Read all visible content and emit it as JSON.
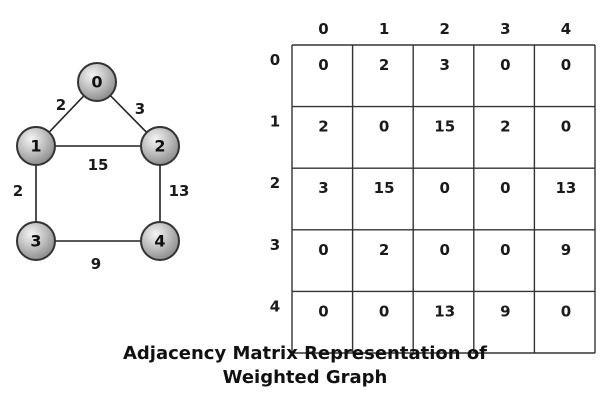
{
  "graph": {
    "nodes": [
      "0",
      "1",
      "2",
      "3",
      "4"
    ],
    "edges": [
      {
        "from": "0",
        "to": "1",
        "weight": "2"
      },
      {
        "from": "0",
        "to": "2",
        "weight": "3"
      },
      {
        "from": "1",
        "to": "2",
        "weight": "15"
      },
      {
        "from": "1",
        "to": "3",
        "weight": "2"
      },
      {
        "from": "2",
        "to": "4",
        "weight": "13"
      },
      {
        "from": "3",
        "to": "4",
        "weight": "9"
      }
    ]
  },
  "matrix": {
    "column_headers": [
      "0",
      "1",
      "2",
      "3",
      "4"
    ],
    "row_headers": [
      "0",
      "1",
      "2",
      "3",
      "4"
    ],
    "rows": [
      [
        "0",
        "2",
        "3",
        "0",
        "0"
      ],
      [
        "2",
        "0",
        "15",
        "2",
        "0"
      ],
      [
        "3",
        "15",
        "0",
        "0",
        "13"
      ],
      [
        "0",
        "2",
        "0",
        "0",
        "9"
      ],
      [
        "0",
        "0",
        "13",
        "9",
        "0"
      ]
    ]
  },
  "caption": {
    "line1": "Adjacency Matrix Representation of",
    "line2": "Weighted Graph"
  }
}
